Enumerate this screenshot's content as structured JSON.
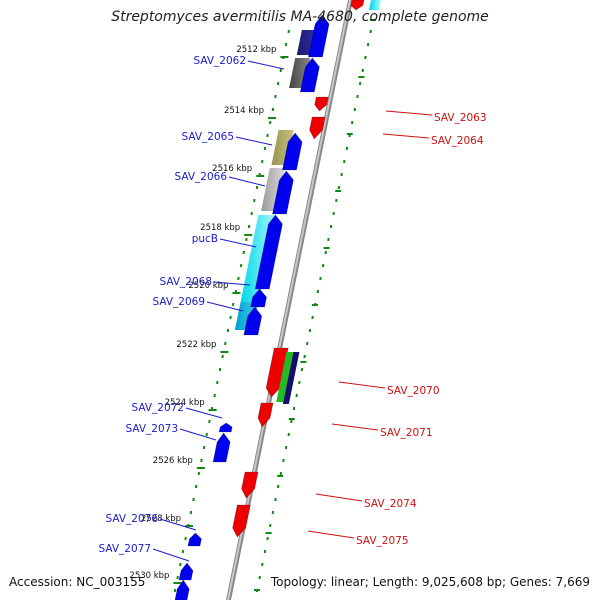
{
  "title": "Streptomyces avermitilis MA-4680, complete genome",
  "footer": {
    "accession": "Accession: NC_003155",
    "stats": "Topology: linear; Length: 9,025,608 bp; Genes: 7,669"
  },
  "colors": {
    "forward": "#0000ee",
    "reverse": "#ee0000",
    "backbone": "#888888",
    "tick": "#118811",
    "label_forward": "#1a1acc",
    "label_reverse": "#cc1111"
  },
  "ruler_labels": [
    "2512 kbp",
    "2514 kbp",
    "2516 kbp",
    "2518 kbp",
    "2520 kbp",
    "2522 kbp",
    "2524 kbp",
    "2526 kbp",
    "2528 kbp",
    "2530 kbp"
  ],
  "forward_gene_labels": [
    "SAV_2062",
    "SAV_2065",
    "SAV_2066",
    "pucB",
    "SAV_2068",
    "SAV_2069",
    "SAV_2072",
    "SAV_2073",
    "SAV_2076",
    "SAV_2077"
  ],
  "reverse_gene_labels": [
    "SAV_2063",
    "SAV_2064",
    "SAV_2070",
    "SAV_2071",
    "SAV_2074",
    "SAV_2075"
  ]
}
